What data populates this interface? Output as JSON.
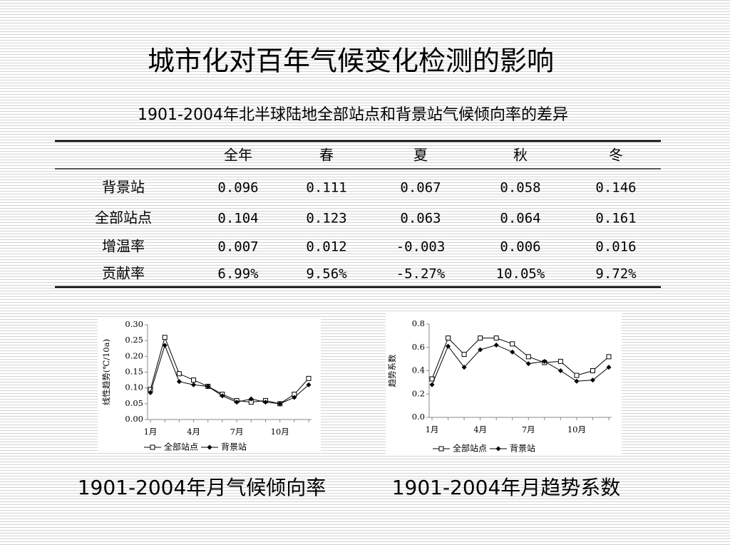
{
  "header": {
    "title": "城市化对百年气候变化检测的影响",
    "subtitle": "1901-2004年北半球陆地全部站点和背景站气候倾向率的差异"
  },
  "table": {
    "columns": [
      "全年",
      "春",
      "夏",
      "秋",
      "冬"
    ],
    "rows": [
      {
        "label": "背景站",
        "cells": [
          "0.096",
          "0.111",
          "0.067",
          "0.058",
          "0.146"
        ]
      },
      {
        "label": "全部站点",
        "cells": [
          "0.104",
          "0.123",
          "0.063",
          "0.064",
          "0.161"
        ]
      },
      {
        "label": "增温率",
        "cells": [
          "0.007",
          "0.012",
          "-0.003",
          "0.006",
          "0.016"
        ]
      },
      {
        "label": "贡献率",
        "cells": [
          "6.99%",
          "9.56%",
          "-5.27%",
          "10.05%",
          "9.72%"
        ]
      }
    ]
  },
  "chart_data": [
    {
      "type": "line",
      "y_label": "线性趋势(℃/10a)",
      "categories": [
        "1月",
        null,
        null,
        "4月",
        null,
        null,
        "7月",
        null,
        null,
        "10月",
        null,
        null
      ],
      "ylim": [
        0,
        0.3
      ],
      "yticks": [
        {
          "value": 0,
          "label": "0.00"
        },
        0.05,
        {
          "value": 0.1,
          "label": "0.10"
        },
        0.15,
        {
          "value": 0.2,
          "label": "0.20"
        },
        0.25,
        {
          "value": 0.3,
          "label": "0.30"
        }
      ],
      "series": [
        {
          "name": "全部站点",
          "color": "#000000",
          "marker": "square",
          "values": [
            0.095,
            0.26,
            0.145,
            0.125,
            0.105,
            0.08,
            0.06,
            0.055,
            0.06,
            0.05,
            0.08,
            0.13
          ]
        },
        {
          "name": "背景站",
          "color": "#000000",
          "marker": "diamond",
          "values": [
            0.085,
            0.235,
            0.12,
            0.11,
            0.105,
            0.075,
            0.055,
            0.065,
            0.055,
            0.05,
            0.07,
            0.11
          ]
        }
      ]
    },
    {
      "type": "line",
      "y_label": "趋势系数",
      "categories": [
        "1月",
        null,
        null,
        "4月",
        null,
        null,
        "7月",
        null,
        null,
        "10月",
        null,
        null
      ],
      "ylim": [
        0,
        0.8
      ],
      "yticks": [
        {
          "value": 0,
          "label": "0.0"
        },
        0.2,
        0.4,
        0.6,
        {
          "value": 0.8,
          "label": "0.8"
        }
      ],
      "series": [
        {
          "name": "全部站点",
          "color": "#000000",
          "marker": "square",
          "values": [
            0.33,
            0.68,
            0.54,
            0.68,
            0.68,
            0.63,
            0.52,
            0.47,
            0.48,
            0.36,
            0.4,
            0.52
          ]
        },
        {
          "name": "背景站",
          "color": "#000000",
          "marker": "diamond",
          "values": [
            0.28,
            0.61,
            0.43,
            0.58,
            0.62,
            0.56,
            0.46,
            0.48,
            0.4,
            0.31,
            0.32,
            0.43
          ]
        }
      ]
    }
  ],
  "captions": [
    "1901-2004年月气候倾向率",
    "1901-2004年月趋势系数"
  ]
}
